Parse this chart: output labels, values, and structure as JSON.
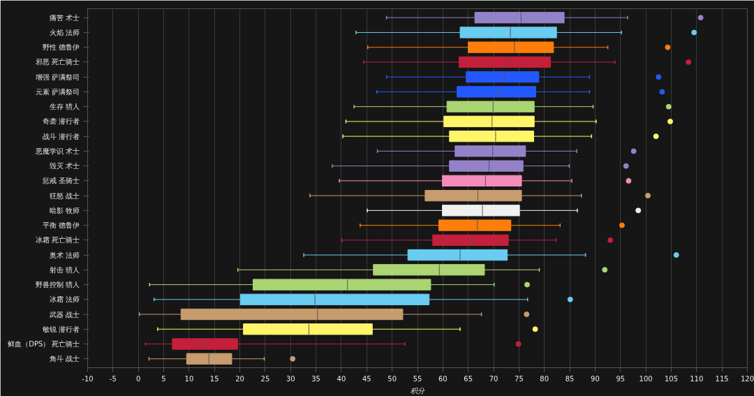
{
  "chart_data": {
    "type": "box",
    "orientation": "horizontal",
    "xlabel": "积分",
    "categories": [
      "痛苦 术士",
      "火焰 法师",
      "野性 德鲁伊",
      "邪恶 死亡骑士",
      "增强 萨满祭司",
      "元素 萨满祭司",
      "生存 猎人",
      "奇袭 潜行者",
      "战斗 潜行者",
      "恶魔学识 术士",
      "毁灭 术士",
      "惩戒 圣骑士",
      "狂怒 战士",
      "暗影 牧师",
      "平衡 德鲁伊",
      "冰霜 死亡骑士",
      "奥术 法师",
      "射击 猎人",
      "野兽控制 猎人",
      "冰霜 法师",
      "武器 战士",
      "敏锐 潜行者",
      "鲜血（DPS） 死亡骑士",
      "角斗 战士"
    ],
    "colors": [
      "#9482c9",
      "#69ccf0",
      "#ff7d0a",
      "#c41f3b",
      "#2459ff",
      "#2459ff",
      "#abd473",
      "#fff569",
      "#fff569",
      "#9482c9",
      "#9482c9",
      "#f58cba",
      "#c79c6e",
      "#f0f0f0",
      "#ff7d0a",
      "#c41f3b",
      "#69ccf0",
      "#abd473",
      "#abd473",
      "#69ccf0",
      "#c79c6e",
      "#fff569",
      "#c41f3b",
      "#c79c6e"
    ],
    "boxes": [
      {
        "low": 48.9,
        "q1": 66.3,
        "median": 75.4,
        "q3": 83.9,
        "high": 96.4,
        "outliers": [
          110.8
        ]
      },
      {
        "low": 42.9,
        "q1": 63.4,
        "median": 73.3,
        "q3": 82.4,
        "high": 95.2,
        "outliers": [
          109.5
        ]
      },
      {
        "low": 45.2,
        "q1": 65.0,
        "median": 74.1,
        "q3": 81.8,
        "high": 92.5,
        "outliers": [
          104.3
        ]
      },
      {
        "low": 44.4,
        "q1": 63.2,
        "median": 72.7,
        "q3": 81.2,
        "high": 93.9,
        "outliers": [
          108.4
        ]
      },
      {
        "low": 48.9,
        "q1": 64.6,
        "median": 72.1,
        "q3": 78.9,
        "high": 88.9,
        "outliers": [
          102.5
        ]
      },
      {
        "low": 47.0,
        "q1": 62.8,
        "median": 71.0,
        "q3": 78.3,
        "high": 88.9,
        "outliers": [
          103.2
        ]
      },
      {
        "low": 42.5,
        "q1": 60.8,
        "median": 69.9,
        "q3": 78.0,
        "high": 89.6,
        "outliers": [
          104.5
        ]
      },
      {
        "low": 40.9,
        "q1": 60.2,
        "median": 69.7,
        "q3": 78.0,
        "high": 90.2,
        "outliers": [
          104.8
        ]
      },
      {
        "low": 40.3,
        "q1": 61.3,
        "median": 70.4,
        "q3": 77.9,
        "high": 89.3,
        "outliers": [
          102.0
        ]
      },
      {
        "low": 47.1,
        "q1": 62.4,
        "median": 69.8,
        "q3": 76.3,
        "high": 86.4,
        "outliers": [
          97.6
        ]
      },
      {
        "low": 38.2,
        "q1": 61.3,
        "median": 69.1,
        "q3": 75.8,
        "high": 84.9,
        "outliers": [
          96.1
        ]
      },
      {
        "low": 39.6,
        "q1": 59.9,
        "median": 68.4,
        "q3": 75.5,
        "high": 85.4,
        "outliers": [
          96.6
        ]
      },
      {
        "low": 33.8,
        "q1": 56.5,
        "median": 66.9,
        "q3": 75.5,
        "high": 87.3,
        "outliers": [
          100.4
        ]
      },
      {
        "low": 45.1,
        "q1": 59.9,
        "median": 67.8,
        "q3": 75.1,
        "high": 86.5,
        "outliers": [
          98.5
        ]
      },
      {
        "low": 43.7,
        "q1": 59.2,
        "median": 66.8,
        "q3": 73.4,
        "high": 83.1,
        "outliers": [
          95.3
        ]
      },
      {
        "low": 40.1,
        "q1": 58.0,
        "median": 66.0,
        "q3": 72.9,
        "high": 82.3,
        "outliers": [
          93.0
        ]
      },
      {
        "low": 32.6,
        "q1": 53.1,
        "median": 63.4,
        "q3": 72.7,
        "high": 88.1,
        "outliers": [
          106.0
        ]
      },
      {
        "low": 19.6,
        "q1": 46.3,
        "median": 59.3,
        "q3": 68.2,
        "high": 79.0,
        "outliers": [
          91.9
        ]
      },
      {
        "low": 2.2,
        "q1": 22.6,
        "median": 41.2,
        "q3": 57.6,
        "high": 70.1,
        "outliers": [
          76.6
        ]
      },
      {
        "low": 3.1,
        "q1": 20.1,
        "median": 34.8,
        "q3": 57.3,
        "high": 76.7,
        "outliers": [
          85.1
        ]
      },
      {
        "low": 0.2,
        "q1": 8.4,
        "median": 35.3,
        "q3": 52.1,
        "high": 67.6,
        "outliers": [
          76.5
        ]
      },
      {
        "low": 3.8,
        "q1": 20.7,
        "median": 33.6,
        "q3": 46.1,
        "high": 63.4,
        "outliers": [
          78.2
        ]
      },
      {
        "low": 1.4,
        "q1": 6.7,
        "median": 12.9,
        "q3": 19.6,
        "high": 52.5,
        "outliers": [
          74.9
        ]
      },
      {
        "low": 2.1,
        "q1": 9.5,
        "median": 13.9,
        "q3": 18.4,
        "high": 24.8,
        "outliers": [
          30.4
        ]
      }
    ],
    "xlim": [
      -10,
      120
    ],
    "xticks": [
      -10,
      -5,
      0,
      5,
      10,
      15,
      20,
      25,
      30,
      35,
      40,
      45,
      50,
      55,
      60,
      65,
      70,
      75,
      80,
      85,
      90,
      95,
      100,
      105,
      110,
      115,
      120
    ],
    "grid": "x",
    "marker": "circle"
  }
}
